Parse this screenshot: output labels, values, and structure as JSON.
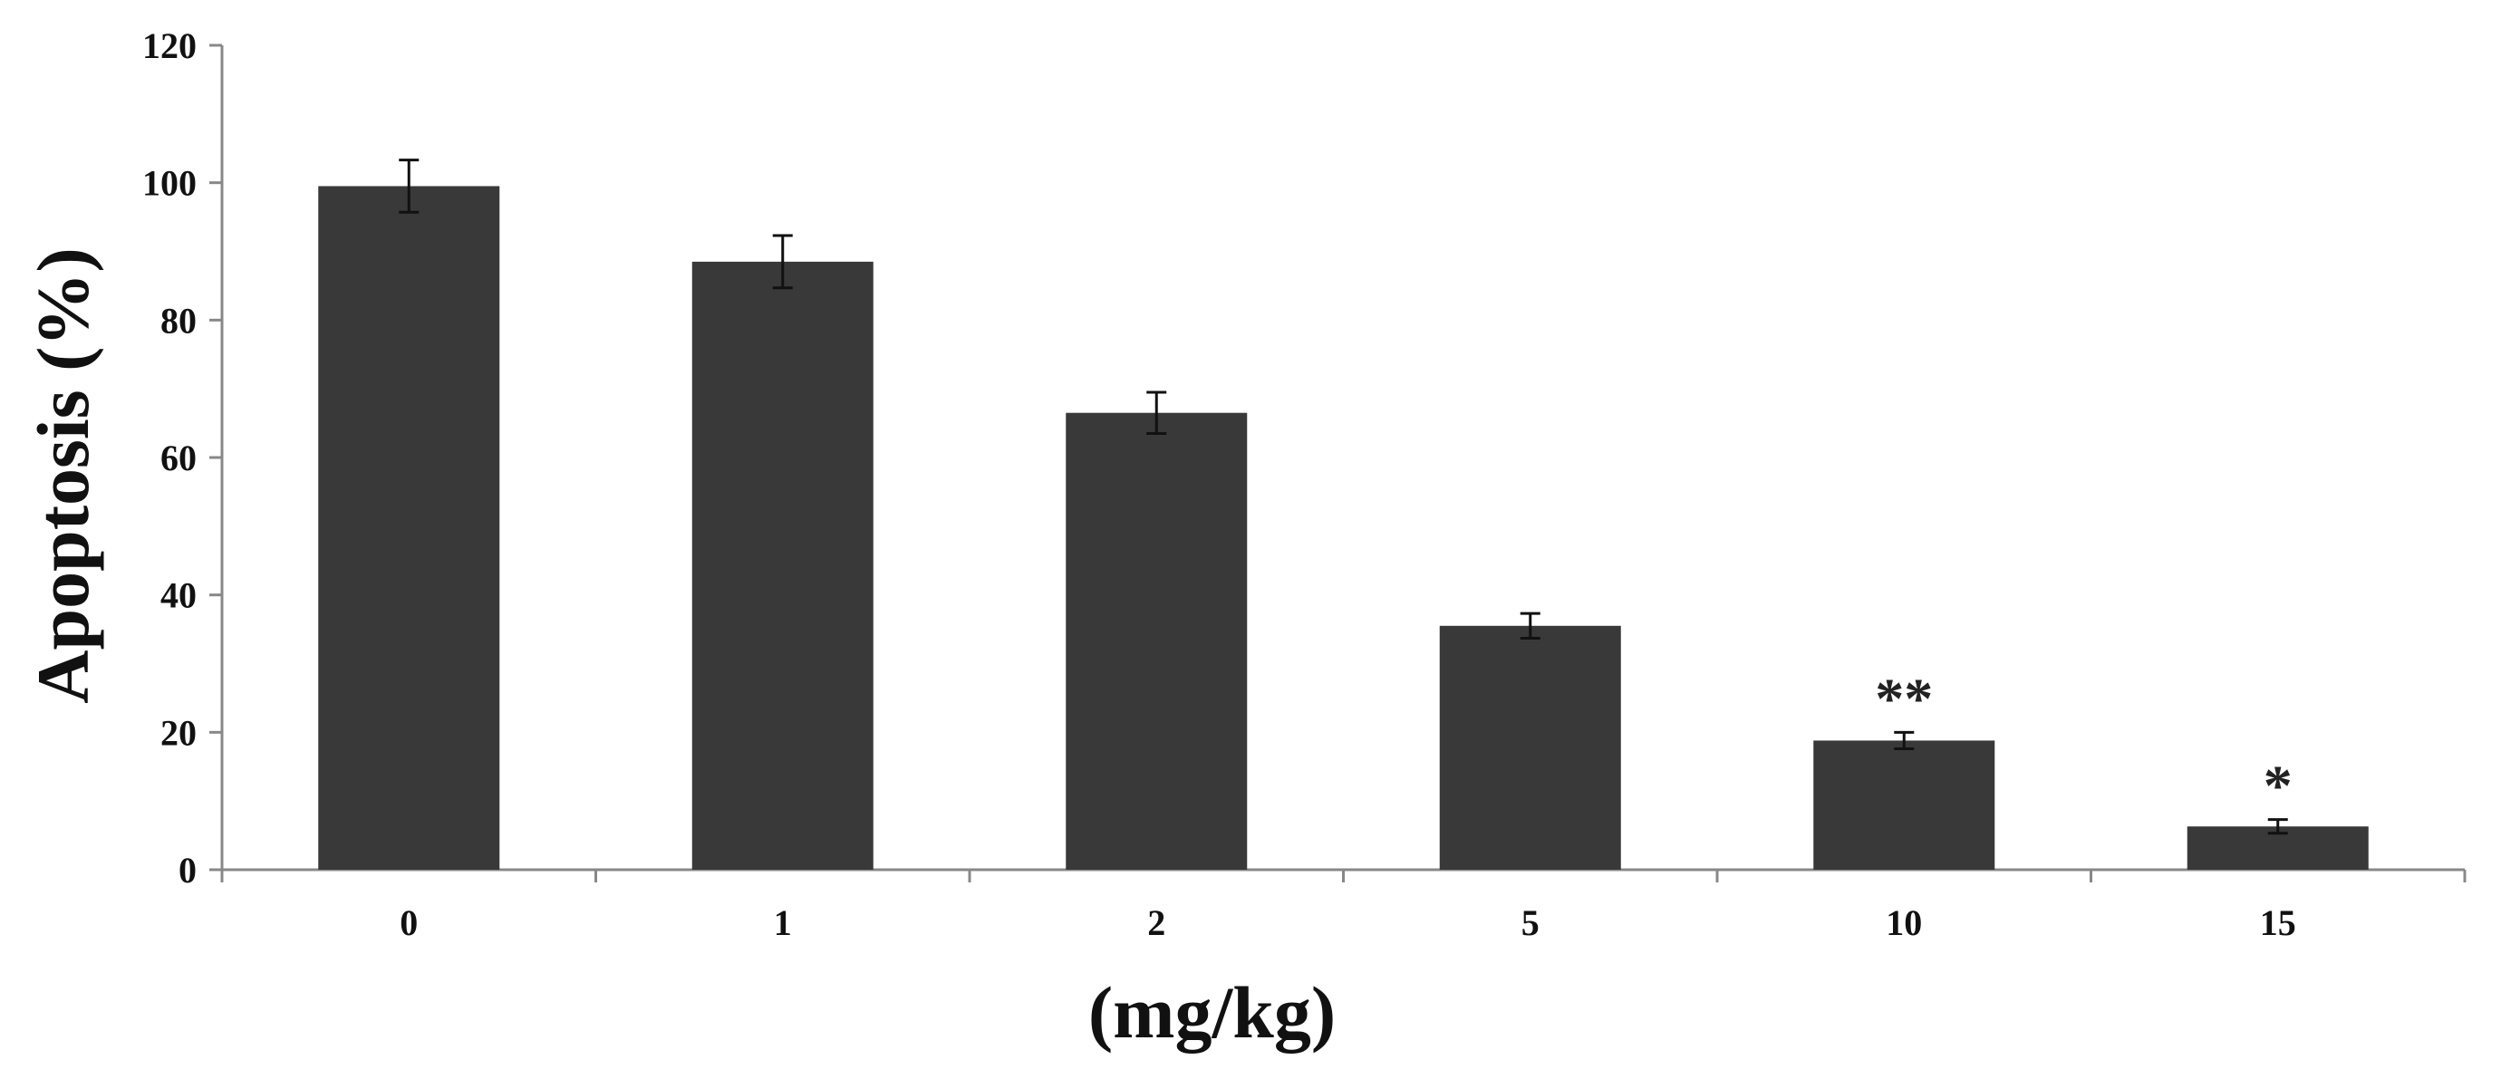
{
  "chart_data": {
    "type": "bar",
    "title": "",
    "xlabel": "(mg/kg)",
    "ylabel": "Apoptosis (%)",
    "categories": [
      "0",
      "1",
      "2",
      "5",
      "10",
      "15"
    ],
    "values": [
      99.5,
      88.5,
      66.5,
      35.5,
      18.8,
      6.3
    ],
    "errors": [
      3.8,
      3.8,
      3.0,
      1.8,
      1.2,
      1.0
    ],
    "annotations": [
      "",
      "",
      "",
      "",
      "**",
      "*"
    ],
    "ylim": [
      0,
      120
    ],
    "yticks": [
      0,
      20,
      40,
      60,
      80,
      100,
      120
    ],
    "grid": false,
    "bar_color": "#393939",
    "axis_color": "#888888"
  }
}
